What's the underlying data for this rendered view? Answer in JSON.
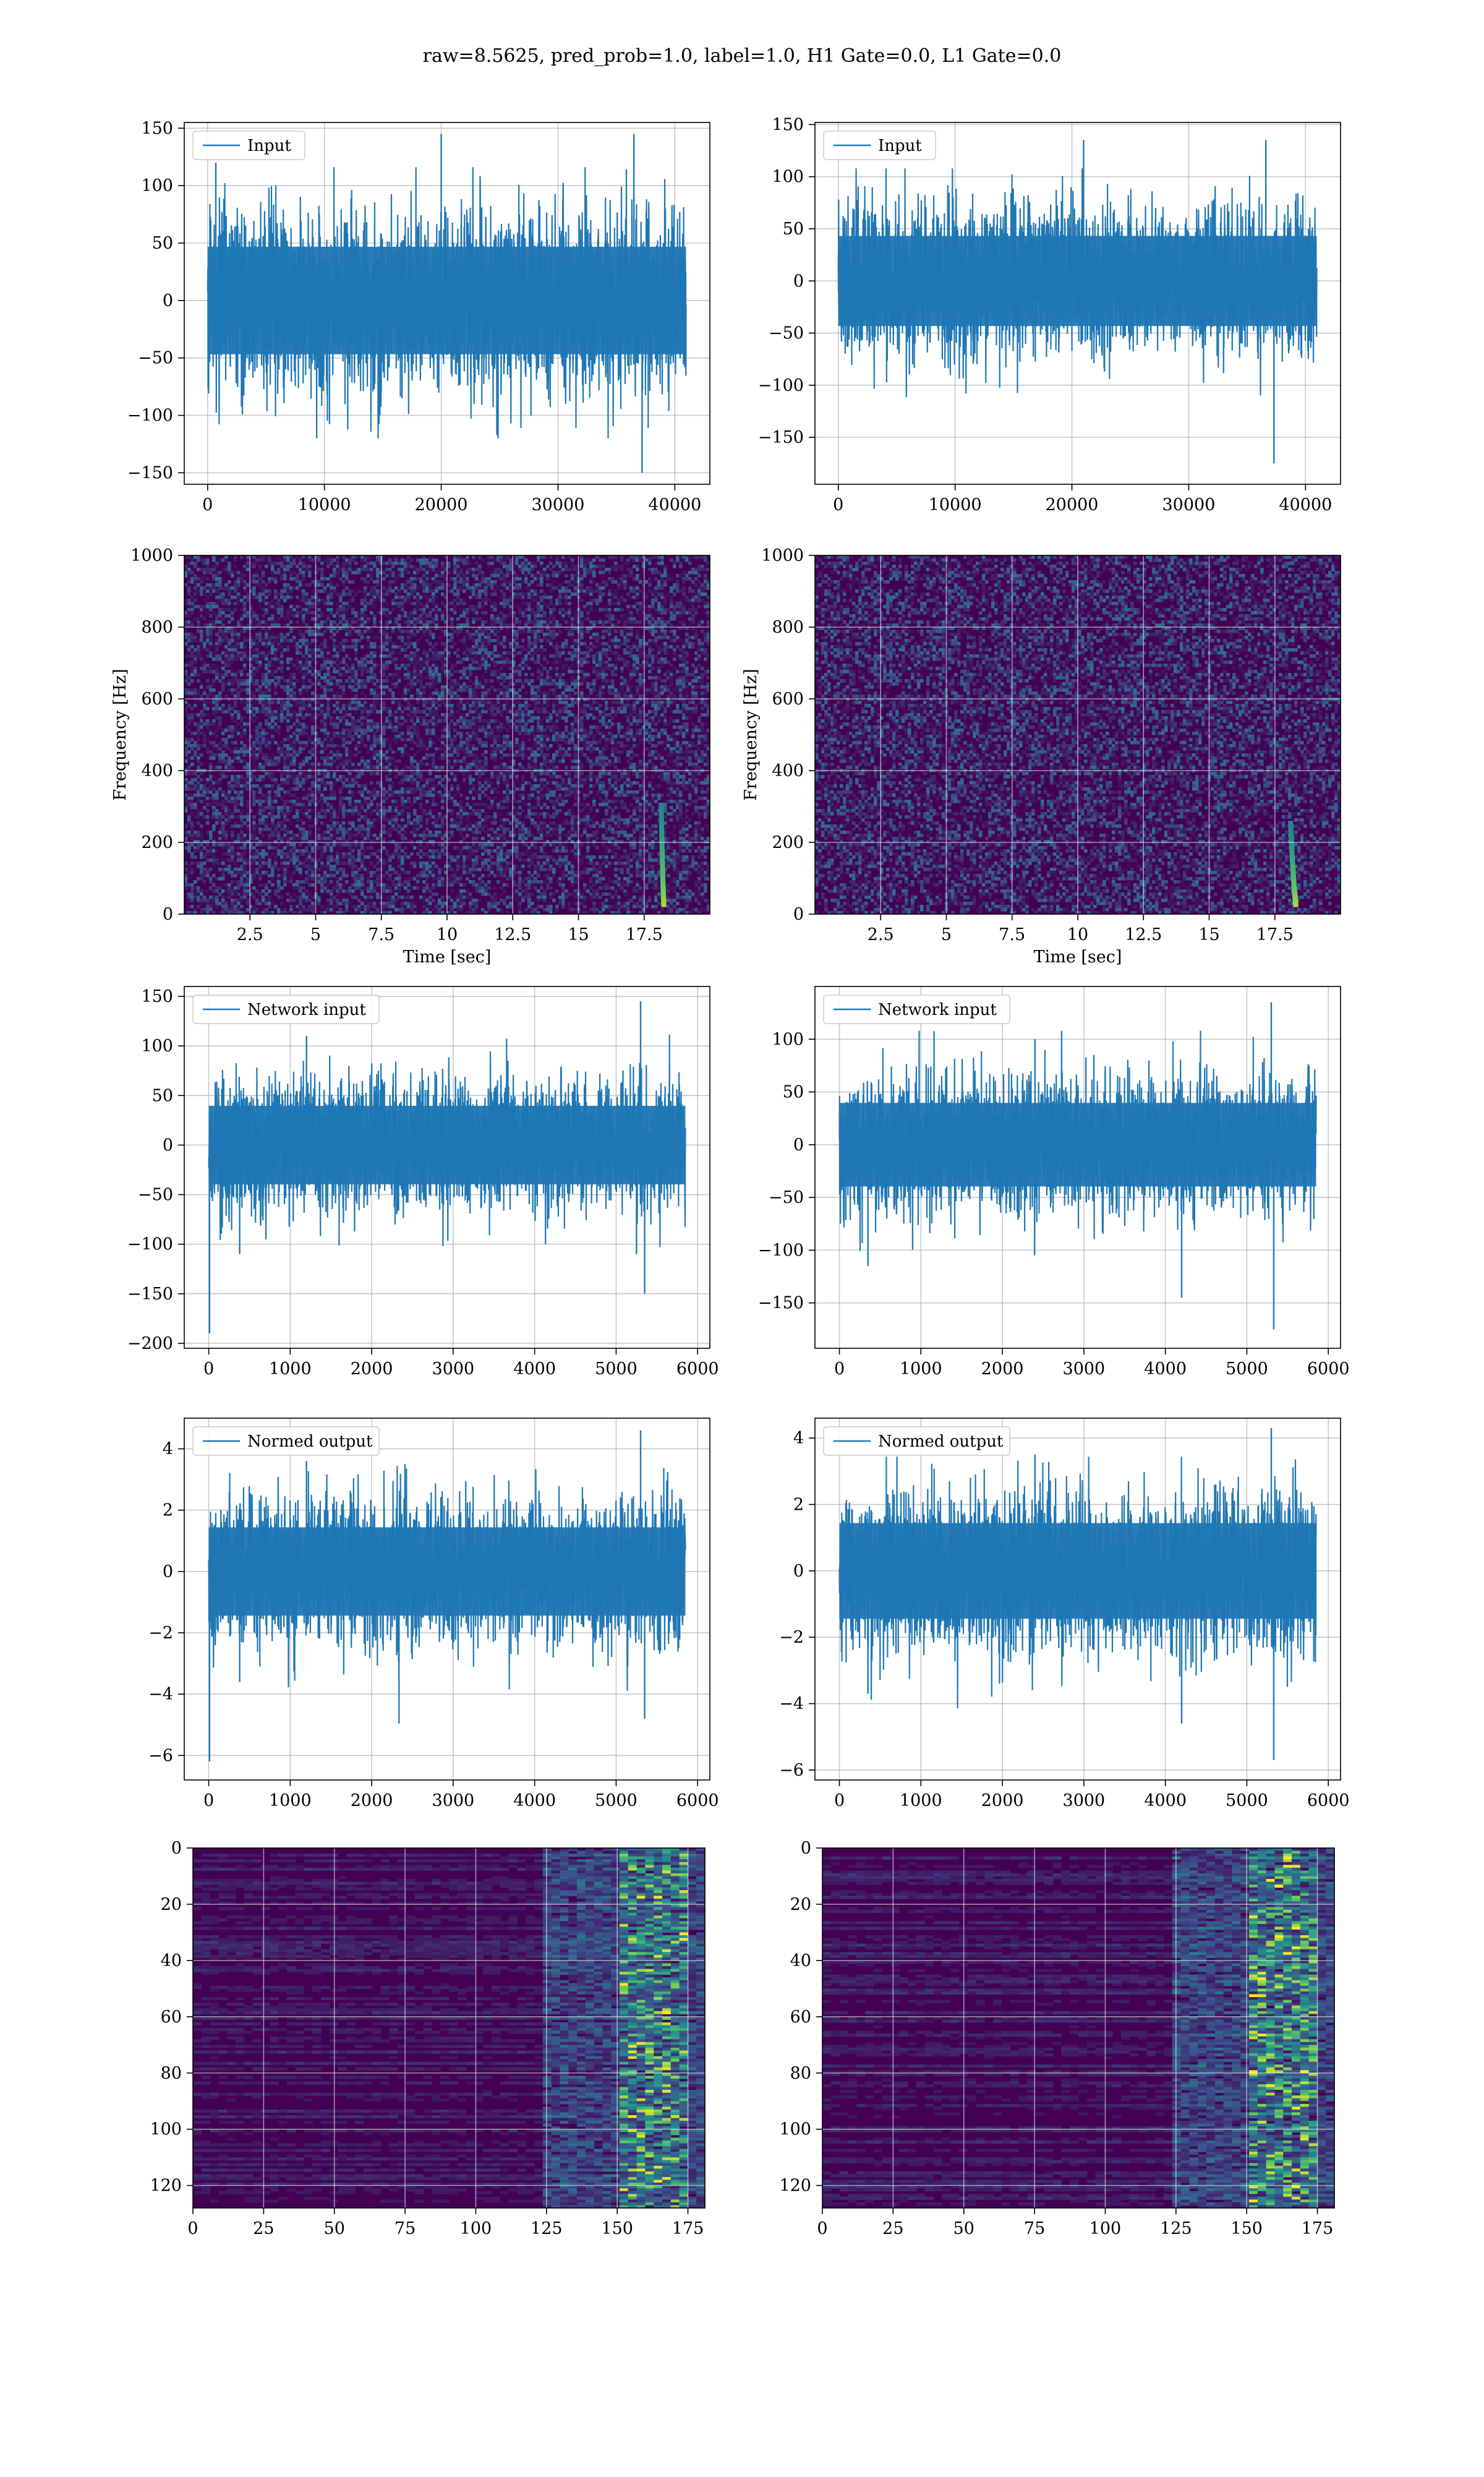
{
  "figure": {
    "suptitle": "raw=8.5625, pred_prob=1.0, label=1.0, H1 Gate=0.0, L1 Gate=0.0"
  },
  "colors": {
    "line": "#1f77b4",
    "grid": "#b0b0b0",
    "viridis_low": "#440154",
    "viridis_mid": "#21918c",
    "viridis_high": "#fde725"
  },
  "chart_data": [
    {
      "id": "input-left",
      "type": "line",
      "legend": "Input",
      "legend_loc": "upper-left",
      "xlim": [
        -2000,
        43000
      ],
      "ylim": [
        -160,
        155
      ],
      "xticks": [
        0,
        10000,
        20000,
        30000,
        40000
      ],
      "yticks": [
        -150,
        -100,
        -50,
        0,
        50,
        100,
        150
      ],
      "x_range": [
        0,
        40960
      ],
      "y_core": 65,
      "y_min": -150,
      "y_max": 145,
      "spikes": [
        [
          20000,
          145
        ],
        [
          36500,
          145
        ],
        [
          37200,
          -150
        ],
        [
          700,
          120
        ]
      ],
      "grid": true,
      "xlabel": "",
      "ylabel": ""
    },
    {
      "id": "input-right",
      "type": "line",
      "legend": "Input",
      "legend_loc": "upper-left",
      "xlim": [
        -2000,
        43000
      ],
      "ylim": [
        -195,
        152
      ],
      "xticks": [
        0,
        10000,
        20000,
        30000,
        40000
      ],
      "yticks": [
        -150,
        -100,
        -50,
        0,
        50,
        100,
        150
      ],
      "x_range": [
        0,
        40960
      ],
      "y_core": 60,
      "y_min": -175,
      "y_max": 135,
      "spikes": [
        [
          36600,
          135
        ],
        [
          37300,
          -175
        ],
        [
          21000,
          135
        ]
      ],
      "grid": true,
      "xlabel": "",
      "ylabel": ""
    },
    {
      "id": "spectrogram-left",
      "type": "heatmap",
      "xlim": [
        0,
        20
      ],
      "ylim": [
        0,
        1000
      ],
      "xticks": [
        2.5,
        5.0,
        7.5,
        10.0,
        12.5,
        15.0,
        17.5
      ],
      "yticks": [
        0,
        200,
        400,
        600,
        800,
        1000
      ],
      "xlabel": "Time [sec]",
      "ylabel": "Frequency [Hz]",
      "chirp": {
        "t_start": 18.25,
        "t_end": 18.15,
        "f_start": 30,
        "f_end": 300
      },
      "grid": true
    },
    {
      "id": "spectrogram-right",
      "type": "heatmap",
      "xlim": [
        0,
        20
      ],
      "ylim": [
        0,
        1000
      ],
      "xticks": [
        2.5,
        5.0,
        7.5,
        10.0,
        12.5,
        15.0,
        17.5
      ],
      "yticks": [
        0,
        200,
        400,
        600,
        800,
        1000
      ],
      "xlabel": "Time [sec]",
      "ylabel": "Frequency [Hz]",
      "chirp": {
        "t_start": 18.3,
        "t_end": 18.1,
        "f_start": 30,
        "f_end": 250
      },
      "grid": true
    },
    {
      "id": "network-left",
      "type": "line",
      "legend": "Network input",
      "legend_loc": "upper-left",
      "xlim": [
        -300,
        6150
      ],
      "ylim": [
        -205,
        160
      ],
      "xticks": [
        0,
        1000,
        2000,
        3000,
        4000,
        5000,
        6000
      ],
      "yticks": [
        -200,
        -150,
        -100,
        -50,
        0,
        50,
        100,
        150
      ],
      "x_range": [
        0,
        5850
      ],
      "y_core": 55,
      "y_min": -190,
      "y_max": 145,
      "spikes": [
        [
          5300,
          145
        ],
        [
          5350,
          -150
        ],
        [
          5250,
          -110
        ],
        [
          10,
          -190
        ],
        [
          380,
          -110
        ],
        [
          1200,
          110
        ]
      ],
      "grid": true,
      "xlabel": "",
      "ylabel": ""
    },
    {
      "id": "network-right",
      "type": "line",
      "legend": "Network input",
      "legend_loc": "upper-left",
      "xlim": [
        -300,
        6150
      ],
      "ylim": [
        -193,
        150
      ],
      "xticks": [
        0,
        1000,
        2000,
        3000,
        4000,
        5000,
        6000
      ],
      "yticks": [
        -150,
        -100,
        -50,
        0,
        50,
        100
      ],
      "x_range": [
        0,
        5850
      ],
      "y_core": 55,
      "y_min": -175,
      "y_max": 135,
      "spikes": [
        [
          5300,
          135
        ],
        [
          5330,
          -175
        ],
        [
          4200,
          -145
        ],
        [
          350,
          -115
        ],
        [
          2400,
          100
        ]
      ],
      "grid": true,
      "xlabel": "",
      "ylabel": ""
    },
    {
      "id": "normed-left",
      "type": "line",
      "legend": "Normed output",
      "legend_loc": "upper-left",
      "xlim": [
        -300,
        6150
      ],
      "ylim": [
        -6.8,
        5.0
      ],
      "xticks": [
        0,
        1000,
        2000,
        3000,
        4000,
        5000,
        6000
      ],
      "yticks": [
        -6,
        -4,
        -2,
        0,
        2,
        4
      ],
      "x_range": [
        0,
        5850
      ],
      "y_core": 2.0,
      "y_min": -6.2,
      "y_max": 4.6,
      "spikes": [
        [
          5300,
          4.6
        ],
        [
          5350,
          -4.8
        ],
        [
          10,
          -6.2
        ],
        [
          380,
          -3.6
        ],
        [
          1200,
          3.6
        ]
      ],
      "grid": true,
      "xlabel": "",
      "ylabel": ""
    },
    {
      "id": "normed-right",
      "type": "line",
      "legend": "Normed output",
      "legend_loc": "upper-left",
      "xlim": [
        -300,
        6150
      ],
      "ylim": [
        -6.3,
        4.6
      ],
      "xticks": [
        0,
        1000,
        2000,
        3000,
        4000,
        5000,
        6000
      ],
      "yticks": [
        -6,
        -4,
        -2,
        0,
        2,
        4
      ],
      "x_range": [
        0,
        5850
      ],
      "y_core": 2.0,
      "y_min": -5.7,
      "y_max": 4.3,
      "spikes": [
        [
          5300,
          4.3
        ],
        [
          5330,
          -5.7
        ],
        [
          4200,
          -4.6
        ],
        [
          350,
          -3.7
        ],
        [
          2400,
          3.5
        ]
      ],
      "grid": true,
      "xlabel": "",
      "ylabel": ""
    },
    {
      "id": "features-left",
      "type": "heatmap",
      "xlim": [
        0,
        181
      ],
      "ylim": [
        128,
        0
      ],
      "xticks": [
        0,
        25,
        50,
        75,
        100,
        125,
        150,
        175
      ],
      "yticks": [
        0,
        20,
        40,
        60,
        80,
        100,
        120
      ],
      "bright_from": 125,
      "hot_band": [
        150,
        175
      ],
      "grid": true,
      "xlabel": "",
      "ylabel": ""
    },
    {
      "id": "features-right",
      "type": "heatmap",
      "xlim": [
        0,
        181
      ],
      "ylim": [
        128,
        0
      ],
      "xticks": [
        0,
        25,
        50,
        75,
        100,
        125,
        150,
        175
      ],
      "yticks": [
        0,
        20,
        40,
        60,
        80,
        100,
        120
      ],
      "bright_from": 125,
      "hot_band": [
        150,
        175
      ],
      "grid": true,
      "xlabel": "",
      "ylabel": ""
    }
  ]
}
